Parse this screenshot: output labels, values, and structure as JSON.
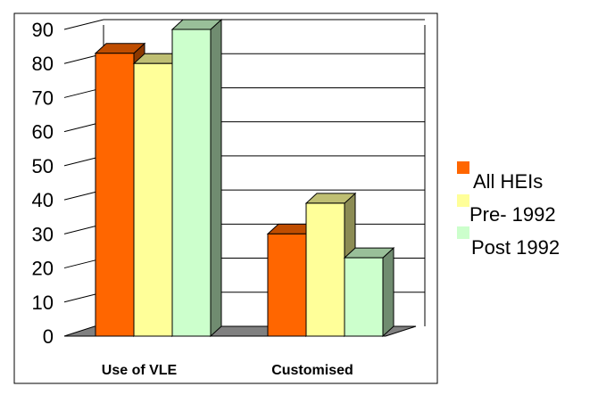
{
  "chart_data": {
    "type": "bar",
    "style": "3d-clustered-column",
    "categories": [
      "Use of VLE",
      "Customised"
    ],
    "series": [
      {
        "name": "All HEIs",
        "values": [
          83,
          30
        ],
        "color": "#ff6600"
      },
      {
        "name": "Pre- 1992",
        "values": [
          80,
          39
        ],
        "color": "#ffff99"
      },
      {
        "name": "Post 1992",
        "values": [
          90,
          23
        ],
        "color": "#ccffcc"
      }
    ],
    "yticks": [
      0,
      10,
      20,
      30,
      40,
      50,
      60,
      70,
      80,
      90
    ],
    "ylim": [
      0,
      90
    ],
    "grid": true,
    "legend_position": "right"
  }
}
